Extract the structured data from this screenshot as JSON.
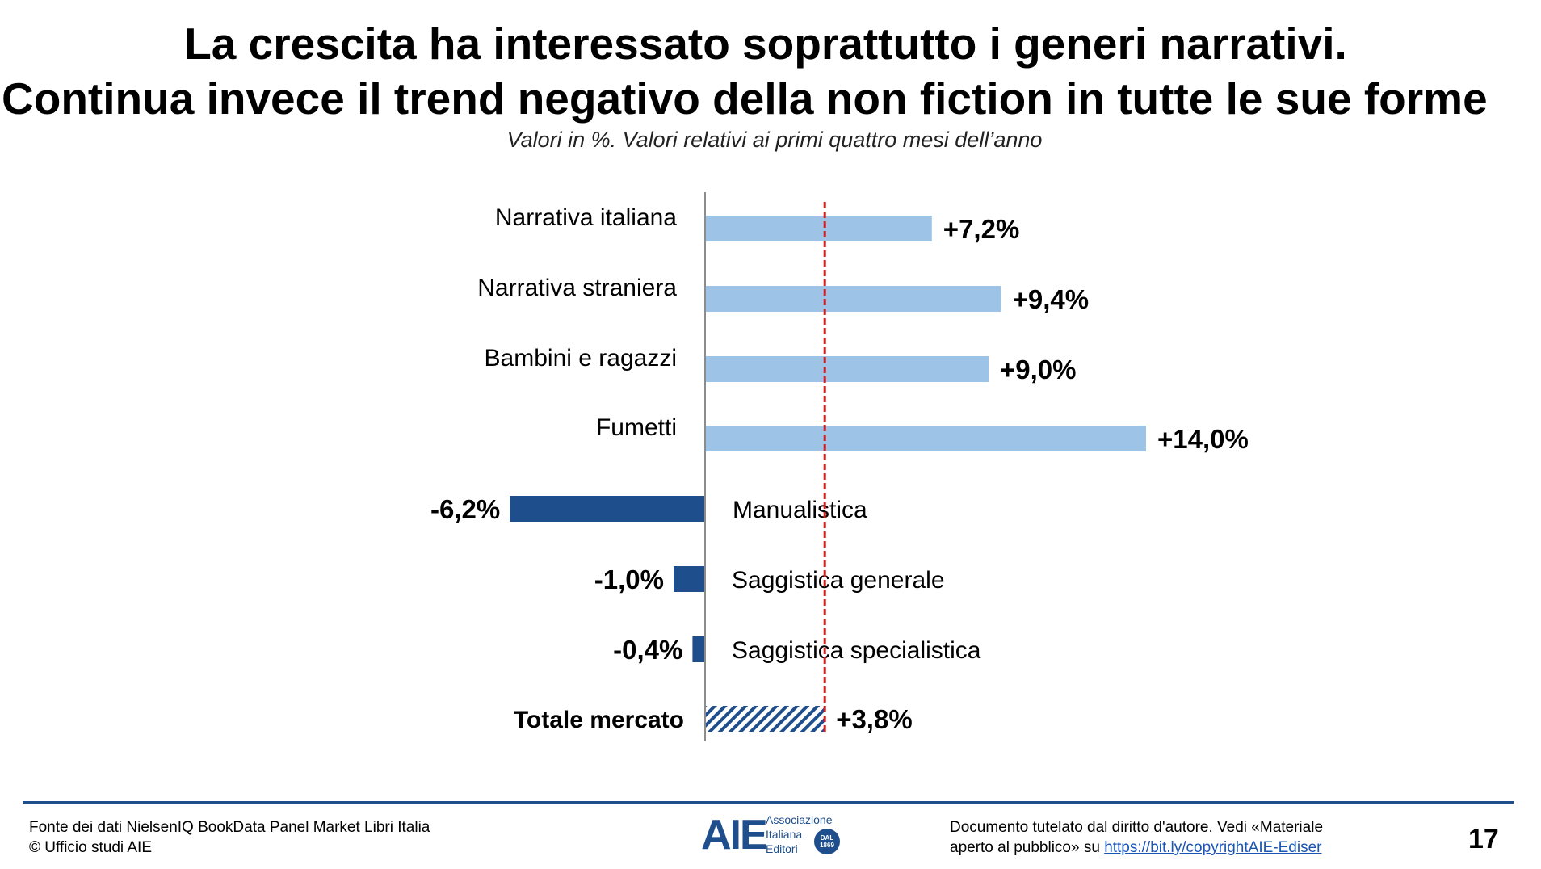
{
  "header": {
    "title_line1": "La crescita ha interessato soprattutto i generi narrativi.",
    "title_line2": "Continua invece il trend negativo della non fiction in tutte le sue forme",
    "subtitle": "Valori in %. Valori relativi ai primi quattro mesi dell’anno"
  },
  "chart_data": {
    "type": "bar",
    "orientation": "horizontal",
    "categories": [
      "Narrativa italiana",
      "Narrativa straniera",
      "Bambini e ragazzi",
      "Fumetti",
      "Manualistica",
      "Saggistica generale",
      "Saggistica specialistica",
      "Totale mercato"
    ],
    "values": [
      7.2,
      9.4,
      9.0,
      14.0,
      -6.2,
      -1.0,
      -0.4,
      3.8
    ],
    "value_labels": [
      "+7,2%",
      "+9,4%",
      "+9,0%",
      "+14,0%",
      "-6,2%",
      "-1,0%",
      "-0,4%",
      "+3,8%"
    ],
    "reference_line": 3.8,
    "colors": {
      "positive": "#9dc3e6",
      "negative": "#1f4e8c",
      "total": "#1f4e8c",
      "reference": "#d62020"
    },
    "grid": false
  },
  "footer": {
    "source_line1": "Fonte dei dati NielsenIQ BookData Panel Market Libri Italia",
    "source_line2": "© Ufficio studi AIE",
    "copyright_line1": "Documento tutelato dal diritto d'autore. Vedi «Materiale",
    "copyright_line2_prefix": "aperto al pubblico» su ",
    "copyright_link": "https://bit.ly/copyrightAIE-Ediser",
    "page_number": "17",
    "logo_text": "AIE",
    "logo_assoc_line1": "Associazione",
    "logo_assoc_line2": "Italiana",
    "logo_assoc_line3": "Editori",
    "logo_badge": "DAL 1869"
  }
}
